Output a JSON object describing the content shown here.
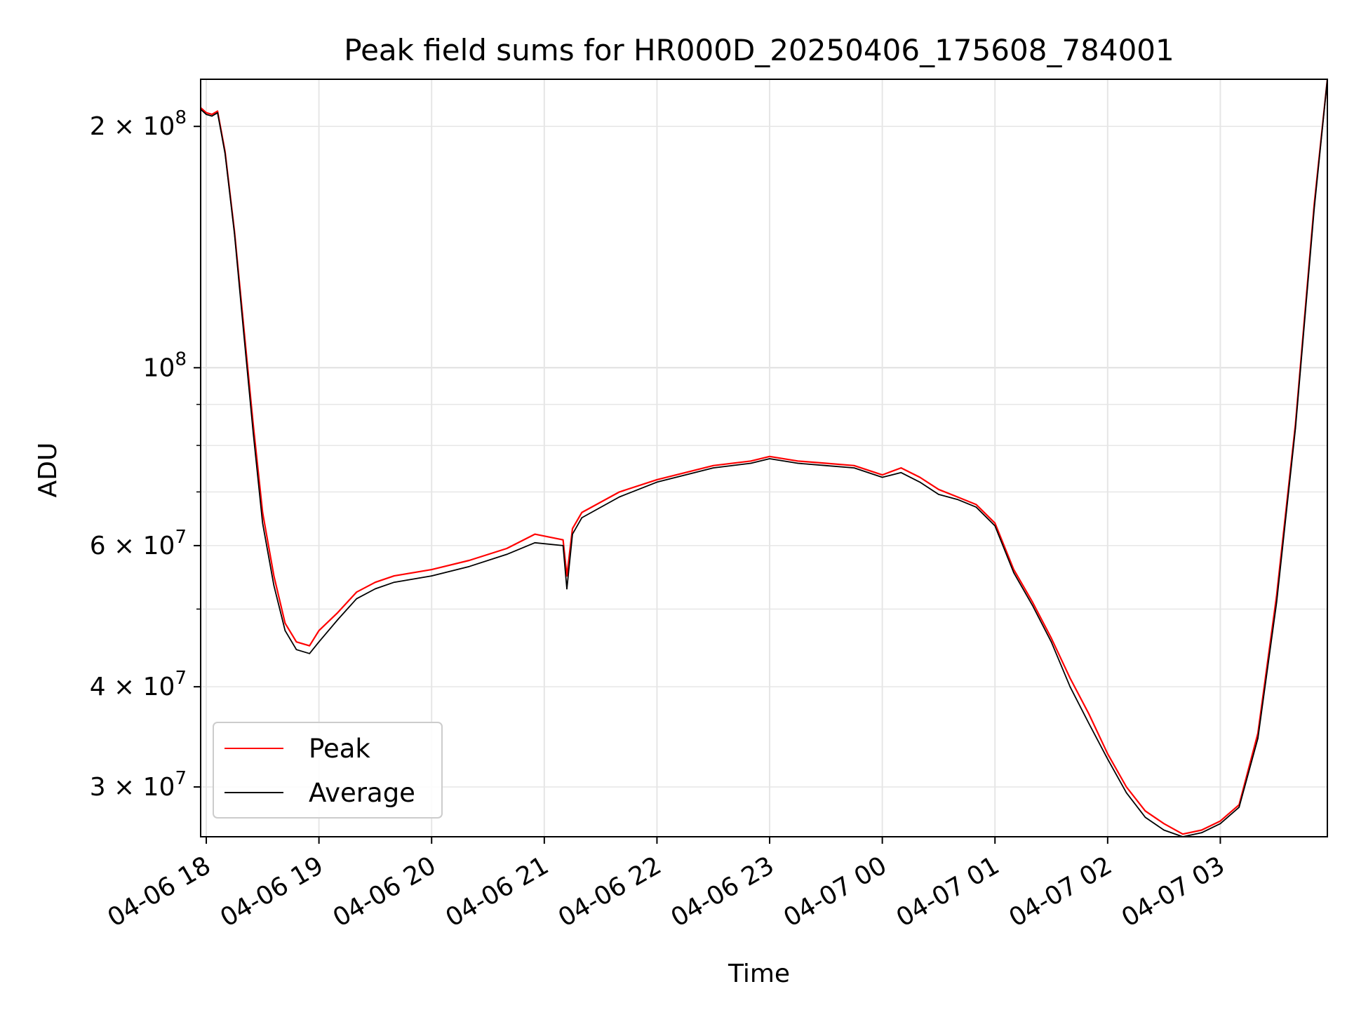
{
  "chart_data": {
    "type": "line",
    "title": "Peak field sums for HR000D_20250406_175608_784001",
    "xlabel": "Time",
    "ylabel": "ADU",
    "yscale": "log",
    "ylim": [
      26000000,
      229000000
    ],
    "xlim": [
      "04-06 17:57",
      "04-07 03:57"
    ],
    "grid": true,
    "legend_position": "lower-left",
    "x_ticks": [
      "04-06 18",
      "04-06 19",
      "04-06 20",
      "04-06 21",
      "04-06 22",
      "04-06 23",
      "04-07 00",
      "04-07 01",
      "04-07 02",
      "04-07 03"
    ],
    "y_ticks": [
      {
        "value": 30000000,
        "mantissa": "3",
        "exp": "7"
      },
      {
        "value": 40000000,
        "mantissa": "4",
        "exp": "7"
      },
      {
        "value": 60000000,
        "mantissa": "6",
        "exp": "7"
      },
      {
        "value": 100000000,
        "mantissa": "",
        "exp": "8"
      },
      {
        "value": 200000000,
        "mantissa": "2",
        "exp": "8"
      }
    ],
    "series": [
      {
        "name": "Peak",
        "color": "#ff0000",
        "x": [
          "04-06 17:57",
          "04-06 18:00",
          "04-06 18:03",
          "04-06 18:06",
          "04-06 18:10",
          "04-06 18:15",
          "04-06 18:20",
          "04-06 18:25",
          "04-06 18:30",
          "04-06 18:36",
          "04-06 18:42",
          "04-06 18:48",
          "04-06 18:55",
          "04-06 19:00",
          "04-06 19:10",
          "04-06 19:20",
          "04-06 19:30",
          "04-06 19:40",
          "04-06 20:00",
          "04-06 20:20",
          "04-06 20:40",
          "04-06 20:55",
          "04-06 21:10",
          "04-06 21:12",
          "04-06 21:15",
          "04-06 21:20",
          "04-06 21:40",
          "04-06 22:00",
          "04-06 22:30",
          "04-06 22:50",
          "04-06 23:00",
          "04-06 23:15",
          "04-06 23:30",
          "04-06 23:45",
          "04-07 00:00",
          "04-07 00:10",
          "04-07 00:20",
          "04-07 00:30",
          "04-07 00:40",
          "04-07 00:50",
          "04-07 01:00",
          "04-07 01:10",
          "04-07 01:20",
          "04-07 01:30",
          "04-07 01:40",
          "04-07 01:50",
          "04-07 02:00",
          "04-07 02:10",
          "04-07 02:20",
          "04-07 02:30",
          "04-07 02:40",
          "04-07 02:50",
          "04-07 03:00",
          "04-07 03:10",
          "04-07 03:20",
          "04-07 03:30",
          "04-07 03:40",
          "04-07 03:50",
          "04-07 03:57"
        ],
        "y": [
          211000000,
          208000000,
          207000000,
          209000000,
          186000000,
          148000000,
          112000000,
          85000000,
          66000000,
          55000000,
          48000000,
          45500000,
          45000000,
          47000000,
          49500000,
          52500000,
          54000000,
          55000000,
          56000000,
          57500000,
          59500000,
          62000000,
          61000000,
          55000000,
          63000000,
          66000000,
          70000000,
          72500000,
          75500000,
          76500000,
          77500000,
          76500000,
          76000000,
          75500000,
          73500000,
          75000000,
          73000000,
          70500000,
          69000000,
          67500000,
          64000000,
          56000000,
          51000000,
          46000000,
          41000000,
          37000000,
          33000000,
          30000000,
          28000000,
          27000000,
          26200000,
          26500000,
          27200000,
          28500000,
          35000000,
          52000000,
          85000000,
          160000000,
          229000000
        ]
      },
      {
        "name": "Average",
        "color": "#000000",
        "x": [
          "04-06 17:57",
          "04-06 18:00",
          "04-06 18:03",
          "04-06 18:06",
          "04-06 18:10",
          "04-06 18:15",
          "04-06 18:20",
          "04-06 18:25",
          "04-06 18:30",
          "04-06 18:36",
          "04-06 18:42",
          "04-06 18:48",
          "04-06 18:55",
          "04-06 19:00",
          "04-06 19:10",
          "04-06 19:20",
          "04-06 19:30",
          "04-06 19:40",
          "04-06 20:00",
          "04-06 20:20",
          "04-06 20:40",
          "04-06 20:55",
          "04-06 21:10",
          "04-06 21:12",
          "04-06 21:15",
          "04-06 21:20",
          "04-06 21:40",
          "04-06 22:00",
          "04-06 22:30",
          "04-06 22:50",
          "04-06 23:00",
          "04-06 23:15",
          "04-06 23:30",
          "04-06 23:45",
          "04-07 00:00",
          "04-07 00:10",
          "04-07 00:20",
          "04-07 00:30",
          "04-07 00:40",
          "04-07 00:50",
          "04-07 01:00",
          "04-07 01:10",
          "04-07 01:20",
          "04-07 01:30",
          "04-07 01:40",
          "04-07 01:50",
          "04-07 02:00",
          "04-07 02:10",
          "04-07 02:20",
          "04-07 02:30",
          "04-07 02:40",
          "04-07 02:50",
          "04-07 03:00",
          "04-07 03:10",
          "04-07 03:20",
          "04-07 03:30",
          "04-07 03:40",
          "04-07 03:50",
          "04-07 03:57"
        ],
        "y": [
          210000000,
          207000000,
          206000000,
          208000000,
          185000000,
          147000000,
          110000000,
          83000000,
          64000000,
          53500000,
          47000000,
          44500000,
          44000000,
          45500000,
          48500000,
          51500000,
          53000000,
          54000000,
          55000000,
          56500000,
          58500000,
          60500000,
          60000000,
          53000000,
          62000000,
          65000000,
          69000000,
          72000000,
          75000000,
          76000000,
          77000000,
          76000000,
          75500000,
          75000000,
          73000000,
          74000000,
          72000000,
          69500000,
          68500000,
          67000000,
          63500000,
          55500000,
          50500000,
          45500000,
          40000000,
          36000000,
          32500000,
          29500000,
          27500000,
          26500000,
          26000000,
          26300000,
          27000000,
          28300000,
          34500000,
          51000000,
          84000000,
          158000000,
          229000000
        ]
      }
    ]
  }
}
